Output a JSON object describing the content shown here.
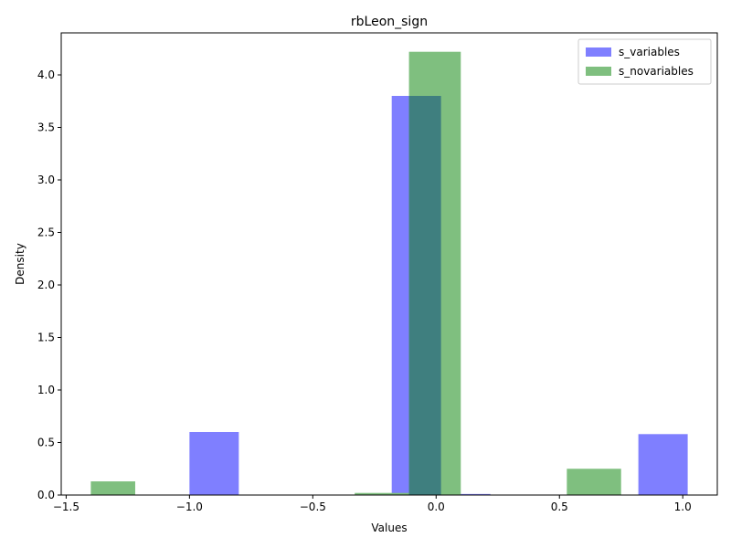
{
  "chart_data": {
    "type": "bar",
    "title": "rbLeon_sign",
    "xlabel": "Values",
    "ylabel": "Density",
    "xlim": [
      -1.52,
      1.14
    ],
    "ylim": [
      0,
      4.4
    ],
    "x_ticks": [
      -1.5,
      -1.0,
      -0.5,
      0.0,
      0.5,
      1.0
    ],
    "x_tick_labels": [
      "−1.5",
      "−1.0",
      "−0.5",
      "0.0",
      "0.5",
      "1.0"
    ],
    "y_ticks": [
      0.0,
      0.5,
      1.0,
      1.5,
      2.0,
      2.5,
      3.0,
      3.5,
      4.0
    ],
    "y_tick_labels": [
      "0.0",
      "0.5",
      "1.0",
      "1.5",
      "2.0",
      "2.5",
      "3.0",
      "3.5",
      "4.0"
    ],
    "grid": false,
    "legend_position": "top-right",
    "series": [
      {
        "name": "s_variables",
        "color": "#7f7fff",
        "bins": [
          {
            "x0": -1.0,
            "x1": -0.8,
            "value": 0.6
          },
          {
            "x0": -0.18,
            "x1": 0.02,
            "value": 3.8
          },
          {
            "x0": 0.02,
            "x1": 0.22,
            "value": 0.01
          },
          {
            "x0": 0.82,
            "x1": 1.02,
            "value": 0.58
          }
        ]
      },
      {
        "name": "s_novariables",
        "color": "#7fbf7f",
        "bins": [
          {
            "x0": -1.4,
            "x1": -1.22,
            "value": 0.13
          },
          {
            "x0": -0.33,
            "x1": -0.11,
            "value": 0.02
          },
          {
            "x0": -0.11,
            "x1": 0.1,
            "value": 4.22
          },
          {
            "x0": 0.53,
            "x1": 0.75,
            "value": 0.25
          }
        ]
      }
    ]
  }
}
